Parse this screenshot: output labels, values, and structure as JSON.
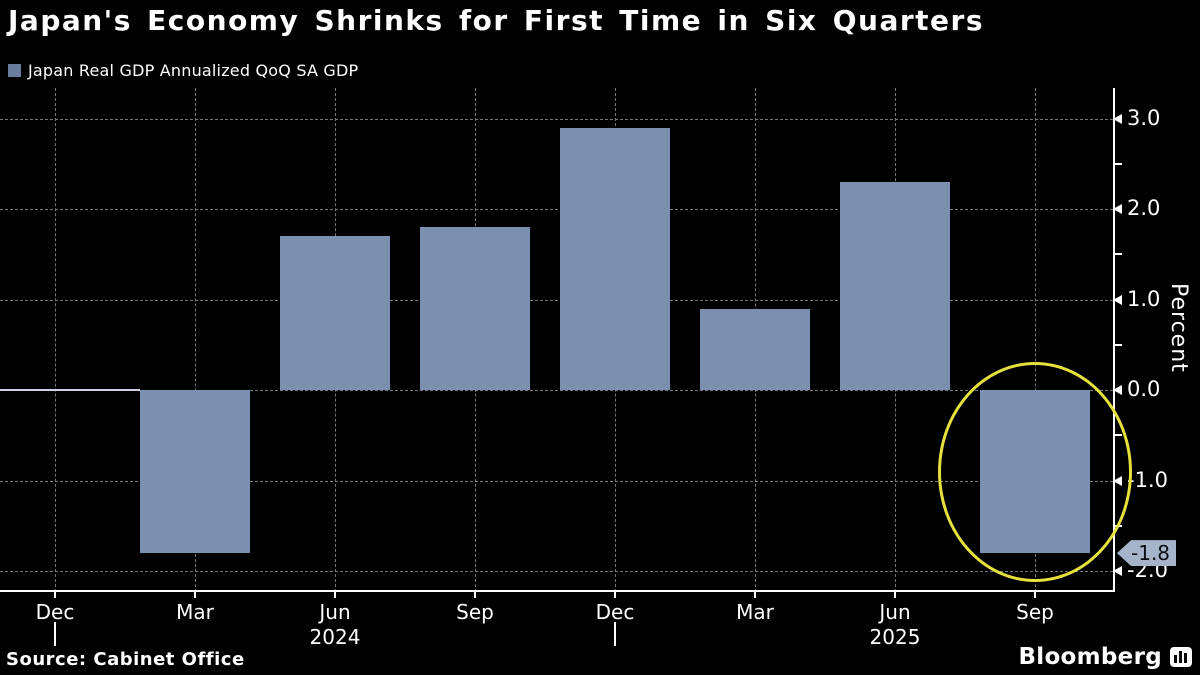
{
  "header": {
    "title": "Japan's Economy Shrinks for First Time in Six Quarters",
    "legend_label": "Japan Real GDP Annualized QoQ SA GDP"
  },
  "chart_data": {
    "type": "bar",
    "title": "Japan's Economy Shrinks for First Time in Six Quarters",
    "series_name": "Japan Real GDP Annualized QoQ SA GDP",
    "x": [
      "Mar 2024",
      "Jun 2024",
      "Sep 2024",
      "Dec 2024",
      "Mar 2025",
      "Jun 2025",
      "Sep 2025"
    ],
    "values": [
      -1.8,
      1.7,
      1.8,
      2.9,
      0.9,
      2.3,
      -1.8
    ],
    "x_tick_labels": [
      "Dec",
      "Mar",
      "Jun",
      "Sep",
      "Dec",
      "Mar",
      "Jun",
      "Sep"
    ],
    "bar_tick_offset": 1,
    "year_labels": [
      {
        "text": "2024",
        "tick_index": 2
      },
      {
        "text": "2025",
        "tick_index": 6
      }
    ],
    "year_separator_tick_indices": [
      0,
      4
    ],
    "y_ticks": [
      3.0,
      2.0,
      1.0,
      0.0,
      -1.0,
      -2.0
    ],
    "y_tick_labels": [
      "3.0",
      "2.0",
      "1.0",
      "0.0",
      "-1.0",
      "-2.0"
    ],
    "ylim": [
      -2.23,
      3.34
    ],
    "ylabel": "Percent",
    "grid": true,
    "legend_position": "top-left",
    "colors": {
      "bar": "#7b8fae",
      "legend_swatch": "#697e9f",
      "gridline": "#767676",
      "axis": "#ffffff",
      "zero_line": "#c9d4e4",
      "highlight_circle": "#e6e13c",
      "tag_background": "#a6b4ca",
      "tag_text": "#0b0e14",
      "background": "#000000",
      "text": "#ffffff"
    },
    "annotation": {
      "value_label": "-1.8",
      "highlight_bar_index": 6,
      "circle_center_value": -0.9
    }
  },
  "footer": {
    "source": "Source: Cabinet Office",
    "brand": "Bloomberg"
  }
}
